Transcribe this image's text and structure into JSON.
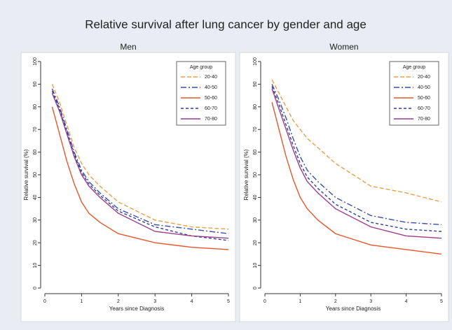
{
  "title": "Relative survival after lung cancer by gender and age",
  "chart_data": [
    {
      "type": "line",
      "title": "Men",
      "xlabel": "Years since Diagnosis",
      "ylabel": "Relative survival (%)",
      "x": [
        0.2,
        0.4,
        0.6,
        0.8,
        1,
        1.2,
        1.5,
        2,
        3,
        4,
        5
      ],
      "xlim": [
        0,
        5
      ],
      "xticks": [
        0,
        1,
        2,
        3,
        4,
        5
      ],
      "ylim": [
        0,
        100
      ],
      "yticks": [
        0,
        10,
        20,
        30,
        40,
        50,
        60,
        70,
        80,
        90,
        100
      ],
      "legend_title": "Age group",
      "legend": "upper right",
      "series": [
        {
          "name": "20-40",
          "color": "#e8a04a",
          "dash": "6,3",
          "values": [
            90,
            82,
            72,
            62,
            55,
            50,
            45,
            38,
            30,
            27,
            26
          ]
        },
        {
          "name": "40-50",
          "color": "#3a4fa8",
          "dash": "8,3,2,3",
          "values": [
            88,
            80,
            70,
            60,
            52,
            47,
            42,
            35,
            28,
            26,
            24
          ]
        },
        {
          "name": "50-60",
          "color": "#e5562d",
          "dash": "none",
          "values": [
            80,
            68,
            56,
            46,
            38,
            33,
            29,
            24,
            20,
            18,
            17
          ]
        },
        {
          "name": "60-70",
          "color": "#2d3f9a",
          "dash": "4,3",
          "values": [
            87,
            79,
            69,
            59,
            51,
            46,
            41,
            34,
            27,
            23,
            21
          ]
        },
        {
          "name": "70-80",
          "color": "#9b3b8a",
          "dash": "none",
          "values": [
            86,
            78,
            68,
            58,
            50,
            45,
            40,
            33,
            25,
            23,
            22
          ]
        }
      ]
    },
    {
      "type": "line",
      "title": "Women",
      "xlabel": "Years since Diagnosis",
      "ylabel": "Relative survival (%)",
      "x": [
        0.2,
        0.4,
        0.6,
        0.8,
        1,
        1.2,
        1.5,
        2,
        3,
        4,
        5
      ],
      "xlim": [
        0,
        5
      ],
      "xticks": [
        0,
        1,
        2,
        3,
        4,
        5
      ],
      "ylim": [
        0,
        100
      ],
      "yticks": [
        0,
        10,
        20,
        30,
        40,
        50,
        60,
        70,
        80,
        90,
        100
      ],
      "legend_title": "Age group",
      "legend": "upper right",
      "series": [
        {
          "name": "20-40",
          "color": "#e8a04a",
          "dash": "6,3",
          "values": [
            92,
            86,
            80,
            74,
            70,
            66,
            62,
            55,
            45,
            42,
            38
          ]
        },
        {
          "name": "40-50",
          "color": "#3a4fa8",
          "dash": "8,3,2,3",
          "values": [
            90,
            83,
            75,
            66,
            58,
            52,
            47,
            40,
            32,
            29,
            28
          ]
        },
        {
          "name": "50-60",
          "color": "#e5562d",
          "dash": "none",
          "values": [
            82,
            70,
            58,
            48,
            40,
            35,
            30,
            24,
            19,
            17,
            15
          ]
        },
        {
          "name": "60-70",
          "color": "#2d3f9a",
          "dash": "4,3",
          "values": [
            89,
            81,
            72,
            63,
            55,
            49,
            44,
            37,
            29,
            26,
            25
          ]
        },
        {
          "name": "70-80",
          "color": "#9b3b8a",
          "dash": "none",
          "values": [
            88,
            79,
            70,
            61,
            53,
            47,
            42,
            35,
            27,
            23,
            22
          ]
        }
      ]
    }
  ]
}
